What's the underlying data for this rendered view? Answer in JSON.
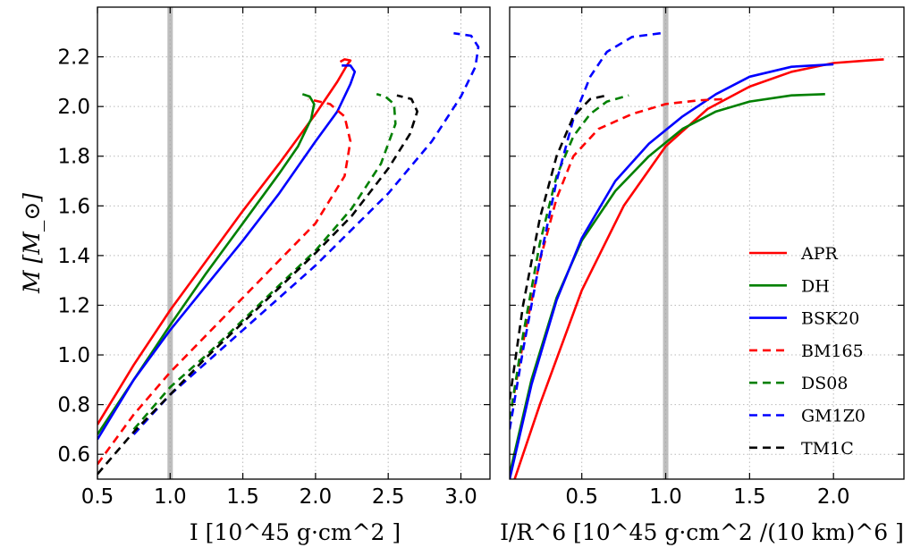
{
  "chart_data": [
    {
      "type": "line",
      "panel": "left",
      "xlabel": "I [10^45 g·cm^2 ]",
      "ylabel": "M [M_⊙]",
      "xlim": [
        0.5,
        3.2
      ],
      "ylim": [
        0.5,
        2.4
      ],
      "xticks": [
        "0.5",
        "1.0",
        "1.5",
        "2.0",
        "2.5",
        "3.0"
      ],
      "yticks": [
        "0.6",
        "0.8",
        "1.0",
        "1.2",
        "1.4",
        "1.6",
        "1.8",
        "2.0",
        "2.2"
      ],
      "grid": true,
      "reference_line_x": 1.0,
      "series": [
        {
          "name": "APR",
          "style": "solid",
          "color": "#ff0000",
          "points": [
            [
              0.5,
              0.72
            ],
            [
              0.75,
              0.96
            ],
            [
              1.0,
              1.18
            ],
            [
              1.25,
              1.38
            ],
            [
              1.5,
              1.58
            ],
            [
              1.75,
              1.77
            ],
            [
              2.0,
              1.97
            ],
            [
              2.15,
              2.1
            ],
            [
              2.22,
              2.17
            ],
            [
              2.24,
              2.185
            ],
            [
              2.2,
              2.19
            ],
            [
              2.17,
              2.18
            ]
          ]
        },
        {
          "name": "DH",
          "style": "solid",
          "color": "#008000",
          "points": [
            [
              0.5,
              0.68
            ],
            [
              0.75,
              0.9
            ],
            [
              1.0,
              1.12
            ],
            [
              1.25,
              1.33
            ],
            [
              1.5,
              1.53
            ],
            [
              1.75,
              1.73
            ],
            [
              1.88,
              1.84
            ],
            [
              1.97,
              1.95
            ],
            [
              1.99,
              2.01
            ],
            [
              1.96,
              2.04
            ],
            [
              1.91,
              2.05
            ]
          ]
        },
        {
          "name": "BSK20",
          "style": "solid",
          "color": "#0000ff",
          "points": [
            [
              0.5,
              0.66
            ],
            [
              0.75,
              0.9
            ],
            [
              1.0,
              1.1
            ],
            [
              1.25,
              1.28
            ],
            [
              1.5,
              1.46
            ],
            [
              1.75,
              1.65
            ],
            [
              2.0,
              1.86
            ],
            [
              2.15,
              1.98
            ],
            [
              2.24,
              2.09
            ],
            [
              2.27,
              2.14
            ],
            [
              2.24,
              2.165
            ],
            [
              2.18,
              2.165
            ]
          ]
        },
        {
          "name": "BM165",
          "style": "dashed",
          "color": "#ff0000",
          "points": [
            [
              0.5,
              0.56
            ],
            [
              0.75,
              0.76
            ],
            [
              1.0,
              0.93
            ],
            [
              1.25,
              1.08
            ],
            [
              1.5,
              1.23
            ],
            [
              1.75,
              1.38
            ],
            [
              2.0,
              1.53
            ],
            [
              2.2,
              1.72
            ],
            [
              2.24,
              1.86
            ],
            [
              2.2,
              1.96
            ],
            [
              2.1,
              2.01
            ],
            [
              1.95,
              2.03
            ]
          ]
        },
        {
          "name": "DS08",
          "style": "dashed",
          "color": "#008000",
          "points": [
            [
              0.75,
              0.7
            ],
            [
              1.0,
              0.87
            ],
            [
              1.25,
              1.0
            ],
            [
              1.5,
              1.14
            ],
            [
              1.75,
              1.28
            ],
            [
              2.0,
              1.42
            ],
            [
              2.25,
              1.59
            ],
            [
              2.45,
              1.77
            ],
            [
              2.55,
              1.93
            ],
            [
              2.54,
              2.01
            ],
            [
              2.48,
              2.04
            ],
            [
              2.42,
              2.05
            ]
          ]
        },
        {
          "name": "GM1Z0",
          "style": "dashed",
          "color": "#0000ff",
          "points": [
            [
              0.75,
              0.68
            ],
            [
              1.0,
              0.84
            ],
            [
              1.5,
              1.1
            ],
            [
              2.0,
              1.36
            ],
            [
              2.5,
              1.65
            ],
            [
              2.8,
              1.86
            ],
            [
              3.0,
              2.04
            ],
            [
              3.1,
              2.16
            ],
            [
              3.12,
              2.24
            ],
            [
              3.07,
              2.285
            ],
            [
              2.95,
              2.295
            ]
          ]
        },
        {
          "name": "TM1C",
          "style": "dashed",
          "color": "#000000",
          "points": [
            [
              0.5,
              0.52
            ],
            [
              0.75,
              0.69
            ],
            [
              1.0,
              0.84
            ],
            [
              1.25,
              0.99
            ],
            [
              1.5,
              1.13
            ],
            [
              1.75,
              1.27
            ],
            [
              2.0,
              1.41
            ],
            [
              2.25,
              1.56
            ],
            [
              2.5,
              1.75
            ],
            [
              2.65,
              1.89
            ],
            [
              2.7,
              1.98
            ],
            [
              2.66,
              2.03
            ],
            [
              2.56,
              2.045
            ]
          ]
        }
      ]
    },
    {
      "type": "line",
      "panel": "right",
      "xlabel": "I/R^6  [10^45 g·cm^2 /(10 km)^6 ]",
      "xlim": [
        0.07,
        2.42
      ],
      "ylim": [
        0.5,
        2.4
      ],
      "xticks": [
        "0.5",
        "1.0",
        "1.5",
        "2.0"
      ],
      "grid": true,
      "legend_position": "lower-right",
      "reference_line_x": 1.0,
      "series": [
        {
          "name": "APR",
          "style": "solid",
          "color": "#ff0000",
          "points": [
            [
              0.1,
              0.5
            ],
            [
              0.25,
              0.8
            ],
            [
              0.5,
              1.26
            ],
            [
              0.75,
              1.6
            ],
            [
              1.0,
              1.84
            ],
            [
              1.25,
              1.99
            ],
            [
              1.5,
              2.08
            ],
            [
              1.75,
              2.14
            ],
            [
              2.0,
              2.175
            ],
            [
              2.2,
              2.185
            ],
            [
              2.3,
              2.19
            ]
          ]
        },
        {
          "name": "DH",
          "style": "solid",
          "color": "#008000",
          "points": [
            [
              0.07,
              0.52
            ],
            [
              0.2,
              0.9
            ],
            [
              0.35,
              1.23
            ],
            [
              0.5,
              1.46
            ],
            [
              0.7,
              1.66
            ],
            [
              0.9,
              1.8
            ],
            [
              1.1,
              1.91
            ],
            [
              1.3,
              1.98
            ],
            [
              1.5,
              2.02
            ],
            [
              1.75,
              2.045
            ],
            [
              1.95,
              2.05
            ]
          ]
        },
        {
          "name": "BSK20",
          "style": "solid",
          "color": "#0000ff",
          "points": [
            [
              0.07,
              0.5
            ],
            [
              0.2,
              0.88
            ],
            [
              0.35,
              1.22
            ],
            [
              0.5,
              1.47
            ],
            [
              0.7,
              1.7
            ],
            [
              0.9,
              1.85
            ],
            [
              1.1,
              1.96
            ],
            [
              1.3,
              2.05
            ],
            [
              1.5,
              2.12
            ],
            [
              1.75,
              2.16
            ],
            [
              2.0,
              2.17
            ]
          ]
        },
        {
          "name": "BM165",
          "style": "dashed",
          "color": "#ff0000",
          "points": [
            [
              0.07,
              0.74
            ],
            [
              0.15,
              1.05
            ],
            [
              0.25,
              1.38
            ],
            [
              0.35,
              1.63
            ],
            [
              0.45,
              1.8
            ],
            [
              0.6,
              1.91
            ],
            [
              0.8,
              1.97
            ],
            [
              1.0,
              2.01
            ],
            [
              1.2,
              2.025
            ],
            [
              1.35,
              2.03
            ]
          ]
        },
        {
          "name": "DS08",
          "style": "dashed",
          "color": "#008000",
          "points": [
            [
              0.07,
              0.74
            ],
            [
              0.15,
              1.08
            ],
            [
              0.25,
              1.45
            ],
            [
              0.35,
              1.72
            ],
            [
              0.45,
              1.88
            ],
            [
              0.55,
              1.97
            ],
            [
              0.65,
              2.02
            ],
            [
              0.78,
              2.045
            ]
          ]
        },
        {
          "name": "GM1Z0",
          "style": "dashed",
          "color": "#0000ff",
          "points": [
            [
              0.07,
              0.7
            ],
            [
              0.15,
              1.02
            ],
            [
              0.25,
              1.38
            ],
            [
              0.35,
              1.7
            ],
            [
              0.45,
              1.95
            ],
            [
              0.55,
              2.12
            ],
            [
              0.65,
              2.22
            ],
            [
              0.8,
              2.28
            ],
            [
              0.97,
              2.295
            ]
          ]
        },
        {
          "name": "TM1C",
          "style": "dashed",
          "color": "#000000",
          "points": [
            [
              0.07,
              0.82
            ],
            [
              0.15,
              1.2
            ],
            [
              0.25,
              1.55
            ],
            [
              0.35,
              1.8
            ],
            [
              0.45,
              1.96
            ],
            [
              0.55,
              2.03
            ],
            [
              0.65,
              2.045
            ]
          ]
        }
      ]
    }
  ]
}
